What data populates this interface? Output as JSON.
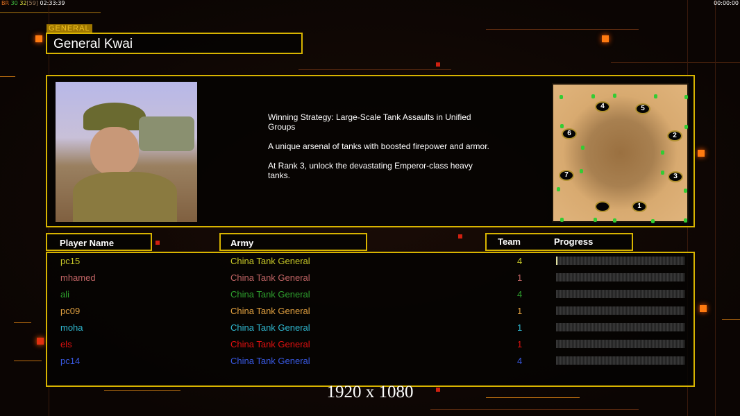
{
  "overlay": {
    "fps_label": "BR",
    "fps_a": "30",
    "fps_b": "32",
    "fps_c": "[59]",
    "clock": "02:33:39",
    "game_time": "00:00:00"
  },
  "general": {
    "section_label": "GENERAL",
    "name": "General Kwai",
    "description": [
      "Winning Strategy: Large-Scale Tank Assaults in Unified Groups",
      "A unique arsenal of tanks with boosted firepower and armor.",
      "At Rank 3, unlock the devastating Emperor-class heavy tanks."
    ]
  },
  "map": {
    "slots": [
      "4",
      "5",
      "6",
      "2",
      "7",
      "3",
      "",
      "1"
    ]
  },
  "table": {
    "headers": {
      "player": "Player Name",
      "army": "Army",
      "team": "Team",
      "progress": "Progress"
    },
    "rows": [
      {
        "player": "pc15",
        "army": "China Tank General",
        "team": "4",
        "color": "#c8c828",
        "progress": 0.01
      },
      {
        "player": "mhamed",
        "army": "China Tank General",
        "team": "1",
        "color": "#c06464",
        "progress": 0
      },
      {
        "player": "ali",
        "army": "China Tank General",
        "team": "4",
        "color": "#2ea02e",
        "progress": 0
      },
      {
        "player": "pc09",
        "army": "China Tank General",
        "team": "1",
        "color": "#e0a040",
        "progress": 0
      },
      {
        "player": "moha",
        "army": "China Tank General",
        "team": "1",
        "color": "#30b8d0",
        "progress": 0
      },
      {
        "player": "els",
        "army": "China Tank General",
        "team": "1",
        "color": "#e01010",
        "progress": 0
      },
      {
        "player": "pc14",
        "army": "China Tank General",
        "team": "4",
        "color": "#3858e0",
        "progress": 0
      }
    ]
  },
  "resolution_caption": "1920 x 1080"
}
